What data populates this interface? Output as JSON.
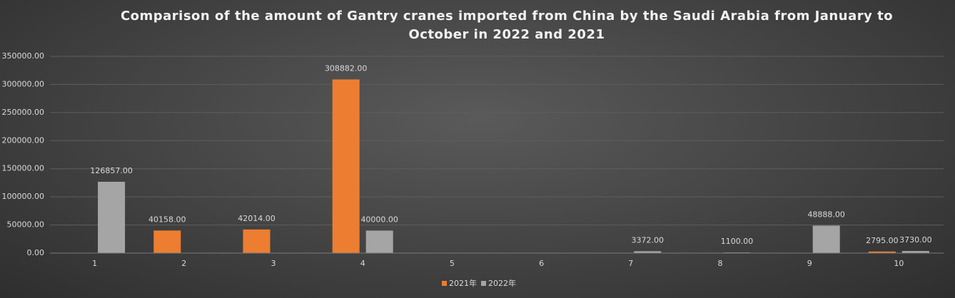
{
  "chart_data": {
    "type": "bar",
    "title": "Comparison of the amount of Gantry cranes imported from China by the Saudi Arabia from January to October in 2022 and 2021",
    "categories": [
      "1",
      "2",
      "3",
      "4",
      "5",
      "6",
      "7",
      "8",
      "9",
      "10"
    ],
    "series": [
      {
        "name": "2021年",
        "color": "#ed7d31",
        "values": [
          null,
          40158,
          42014,
          308882,
          null,
          null,
          null,
          null,
          null,
          2795
        ],
        "value_labels": [
          null,
          "40158.00",
          "42014.00",
          "308882.00",
          null,
          null,
          null,
          null,
          null,
          "2795.00"
        ]
      },
      {
        "name": "2022年",
        "color": "#a5a5a5",
        "values": [
          126857,
          null,
          null,
          40000,
          null,
          null,
          3372,
          1100,
          48888,
          3730
        ],
        "value_labels": [
          "126857.00",
          null,
          null,
          "40000.00",
          null,
          null,
          "3372.00",
          "1100.00",
          "48888.00",
          "3730.00"
        ]
      }
    ],
    "ylim": [
      0,
      350000
    ],
    "yticks": [
      {
        "value": 0,
        "label": "0.00"
      },
      {
        "value": 50000,
        "label": "50000.00"
      },
      {
        "value": 100000,
        "label": "100000.00"
      },
      {
        "value": 150000,
        "label": "150000.00"
      },
      {
        "value": 200000,
        "label": "200000.00"
      },
      {
        "value": 250000,
        "label": "250000.00"
      },
      {
        "value": 300000,
        "label": "300000.00"
      },
      {
        "value": 350000,
        "label": "350000.00"
      }
    ],
    "grid": true,
    "legend": "bottom"
  }
}
